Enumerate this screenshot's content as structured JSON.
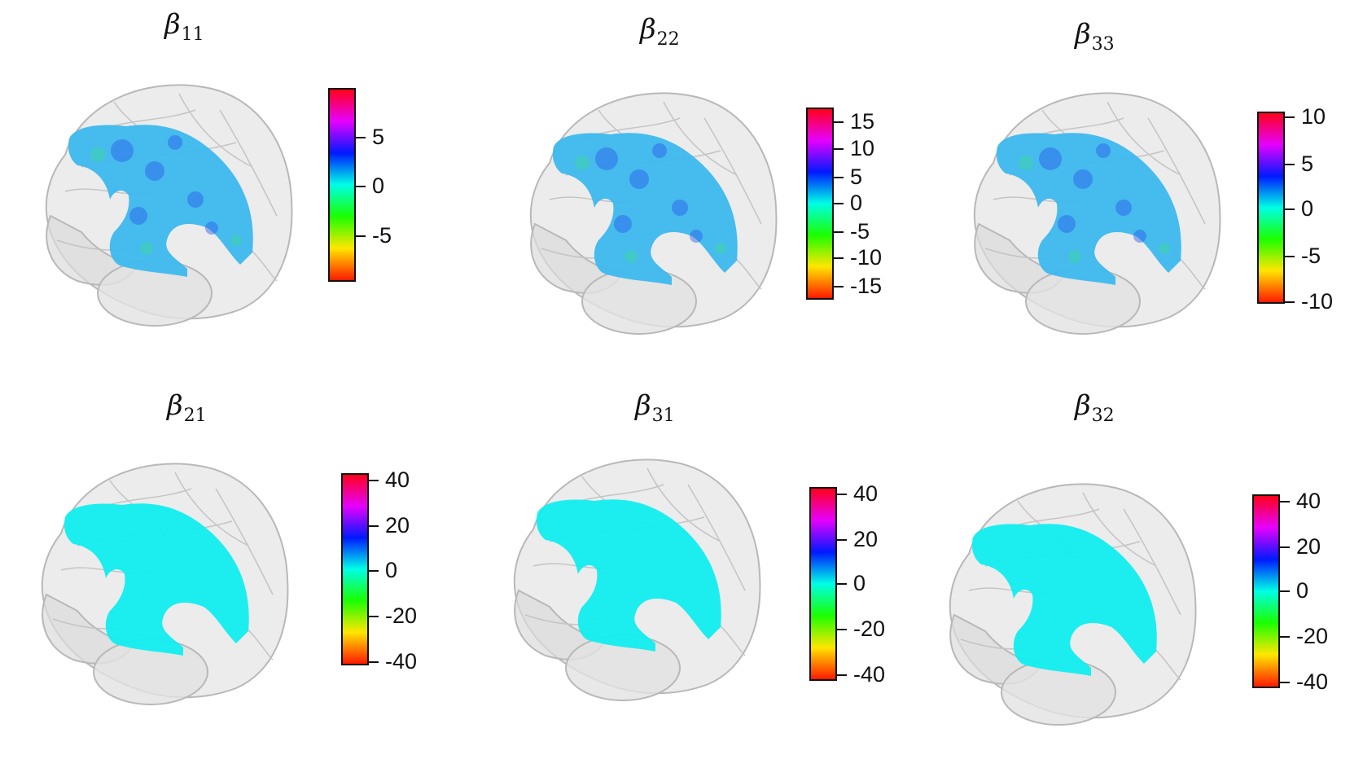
{
  "panels": [
    {
      "id": "b11",
      "title_base": "β",
      "title_sub": "11",
      "region_mode": "detail",
      "ticks": [
        "5",
        "0",
        "-5"
      ],
      "tick_pos": [
        0.25,
        0.51,
        0.77
      ]
    },
    {
      "id": "b22",
      "title_base": "β",
      "title_sub": "22",
      "region_mode": "detail",
      "ticks": [
        "15",
        "10",
        "5",
        "0",
        "-5",
        "-10",
        "-15"
      ],
      "tick_pos": [
        0.07,
        0.21,
        0.36,
        0.5,
        0.65,
        0.79,
        0.94
      ]
    },
    {
      "id": "b33",
      "title_base": "β",
      "title_sub": "33",
      "region_mode": "detail",
      "ticks": [
        "10",
        "5",
        "0",
        "-5",
        "-10"
      ],
      "tick_pos": [
        0.02,
        0.27,
        0.51,
        0.76,
        1.0
      ]
    },
    {
      "id": "b21",
      "title_base": "β",
      "title_sub": "21",
      "region_mode": "flat",
      "ticks": [
        "40",
        "20",
        "0",
        "-20",
        "-40"
      ],
      "tick_pos": [
        0.03,
        0.27,
        0.51,
        0.75,
        0.99
      ]
    },
    {
      "id": "b31",
      "title_base": "β",
      "title_sub": "31",
      "region_mode": "flat",
      "ticks": [
        "40",
        "20",
        "0",
        "-20",
        "-40"
      ],
      "tick_pos": [
        0.03,
        0.27,
        0.5,
        0.74,
        0.98
      ]
    },
    {
      "id": "b32",
      "title_base": "β",
      "title_sub": "32",
      "region_mode": "flat",
      "ticks": [
        "40",
        "20",
        "0",
        "-20",
        "-40"
      ],
      "tick_pos": [
        0.03,
        0.27,
        0.5,
        0.74,
        0.98
      ]
    }
  ],
  "colors": {
    "colormap": [
      "#ff1a00",
      "#ffe600",
      "#1aff00",
      "#00ffe6",
      "#0019ff",
      "#e600ff",
      "#ff0019"
    ],
    "region_flat": "#11eef0",
    "region_detail": "#3db8ee",
    "brain_fill": "#e6e6e6",
    "brain_stroke": "#b8b8b8"
  }
}
